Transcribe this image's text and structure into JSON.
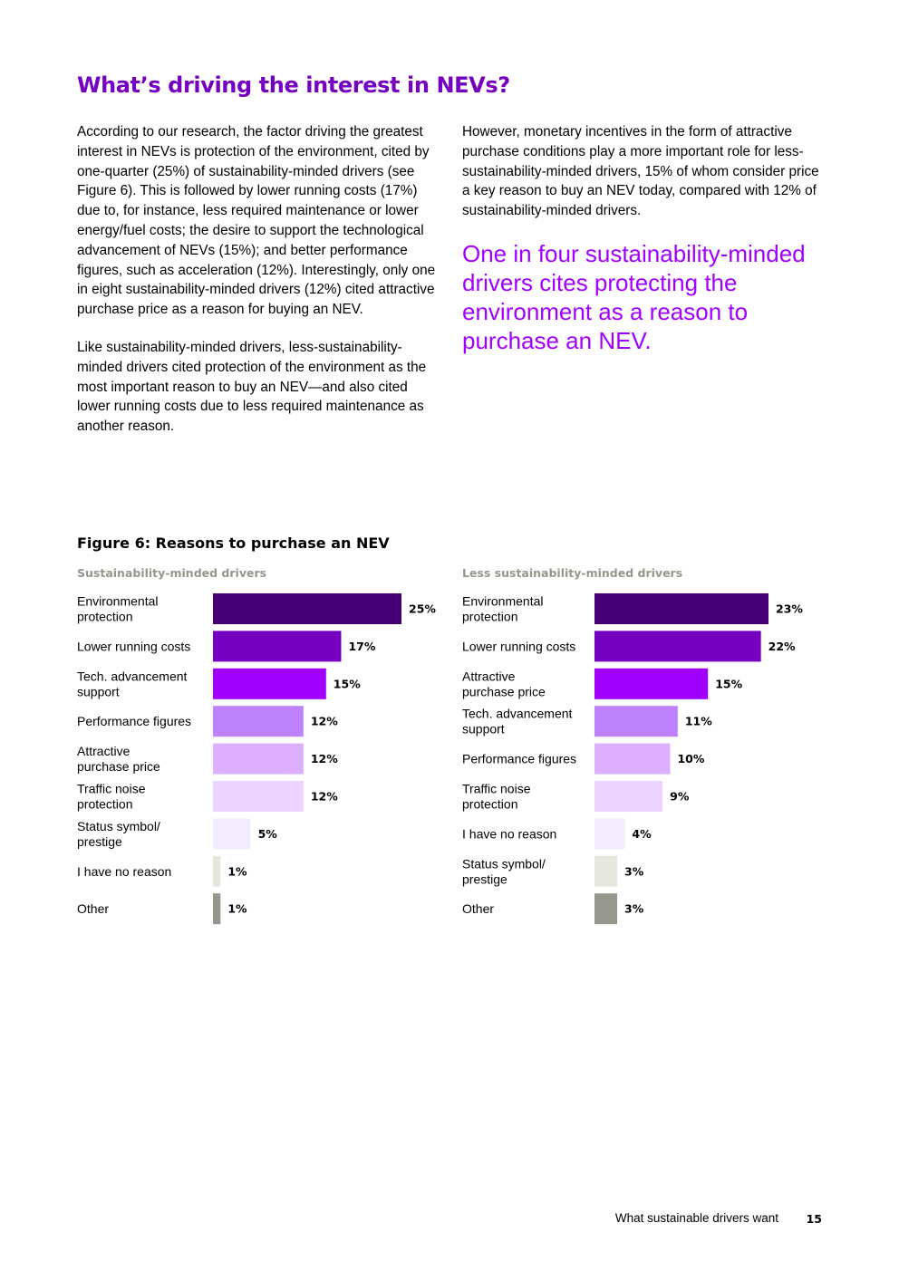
{
  "heading": "What’s driving the interest in NEVs?",
  "body": {
    "left_p1": "According to our research, the factor driving the greatest interest in NEVs is protection of the environment, cited by one-quarter (25%) of sustainability-minded drivers (see Figure 6). This is followed by lower running costs (17%) due to, for instance, less required maintenance or lower energy/fuel costs; the desire to support the technological advancement of NEVs (15%); and better performance figures, such as acceleration (12%). Interestingly, only one in eight sustainability-minded drivers (12%) cited attractive purchase price as a reason for buying an NEV.",
    "left_p2": "Like sustainability-minded drivers, less-sustainability-minded drivers cited protection of the environment as the most important reason to buy an NEV—and also cited lower running costs due to less required maintenance as another reason.",
    "right_p1": "However, monetary incentives in the form of attractive purchase conditions play a more important role for less-sustainability-minded drivers, 15% of whom consider price a key reason to buy an NEV today, compared with 12% of sustainability-minded drivers.",
    "pull_quote": "One in four sustainability-minded drivers cites protecting the environment as a reason to purchase an NEV."
  },
  "figure_title": "Figure 6: Reasons to purchase an NEV",
  "chart_data": [
    {
      "type": "bar",
      "orientation": "horizontal",
      "title": "Sustainability-minded drivers",
      "unit": "%",
      "categories": [
        [
          "Environmental",
          "protection"
        ],
        [
          "Lower running costs"
        ],
        [
          "Tech. advancement",
          "support"
        ],
        [
          "Performance figures"
        ],
        [
          "Attractive",
          "purchase price"
        ],
        [
          "Traffic noise",
          "protection"
        ],
        [
          "Status symbol/",
          "prestige"
        ],
        [
          "I have no reason"
        ],
        [
          "Other"
        ]
      ],
      "values": [
        25,
        17,
        15,
        12,
        12,
        12,
        5,
        1,
        1
      ],
      "value_labels": [
        "25%",
        "17%",
        "15%",
        "12%",
        "12%",
        "12%",
        "5%",
        "1%",
        "1%"
      ],
      "colors": [
        "#460073",
        "#7500c0",
        "#a100ff",
        "#be82ff",
        "#dcafff",
        "#ebd4ff",
        "#f3ebff",
        "#e6e6dc",
        "#96968c"
      ],
      "xlim": [
        0,
        25
      ]
    },
    {
      "type": "bar",
      "orientation": "horizontal",
      "title": "Less sustainability-minded drivers",
      "unit": "%",
      "categories": [
        [
          "Environmental",
          "protection"
        ],
        [
          "Lower running costs"
        ],
        [
          "Attractive",
          "purchase price"
        ],
        [
          "Tech. advancement",
          "support"
        ],
        [
          "Performance figures"
        ],
        [
          "Traffic noise",
          "protection"
        ],
        [
          "I have no reason"
        ],
        [
          "Status symbol/",
          "prestige"
        ],
        [
          "Other"
        ]
      ],
      "values": [
        23,
        22,
        15,
        11,
        10,
        9,
        4,
        3,
        3
      ],
      "value_labels": [
        "23%",
        "22%",
        "15%",
        "11%",
        "10%",
        "9%",
        "4%",
        "3%",
        "3%"
      ],
      "colors": [
        "#460073",
        "#7500c0",
        "#a100ff",
        "#be82ff",
        "#dcafff",
        "#ebd4ff",
        "#f3ebff",
        "#e6e6dc",
        "#96968c"
      ],
      "xlim": [
        0,
        23
      ]
    }
  ],
  "footer": {
    "text": "What sustainable drivers want",
    "page_number": "15"
  }
}
